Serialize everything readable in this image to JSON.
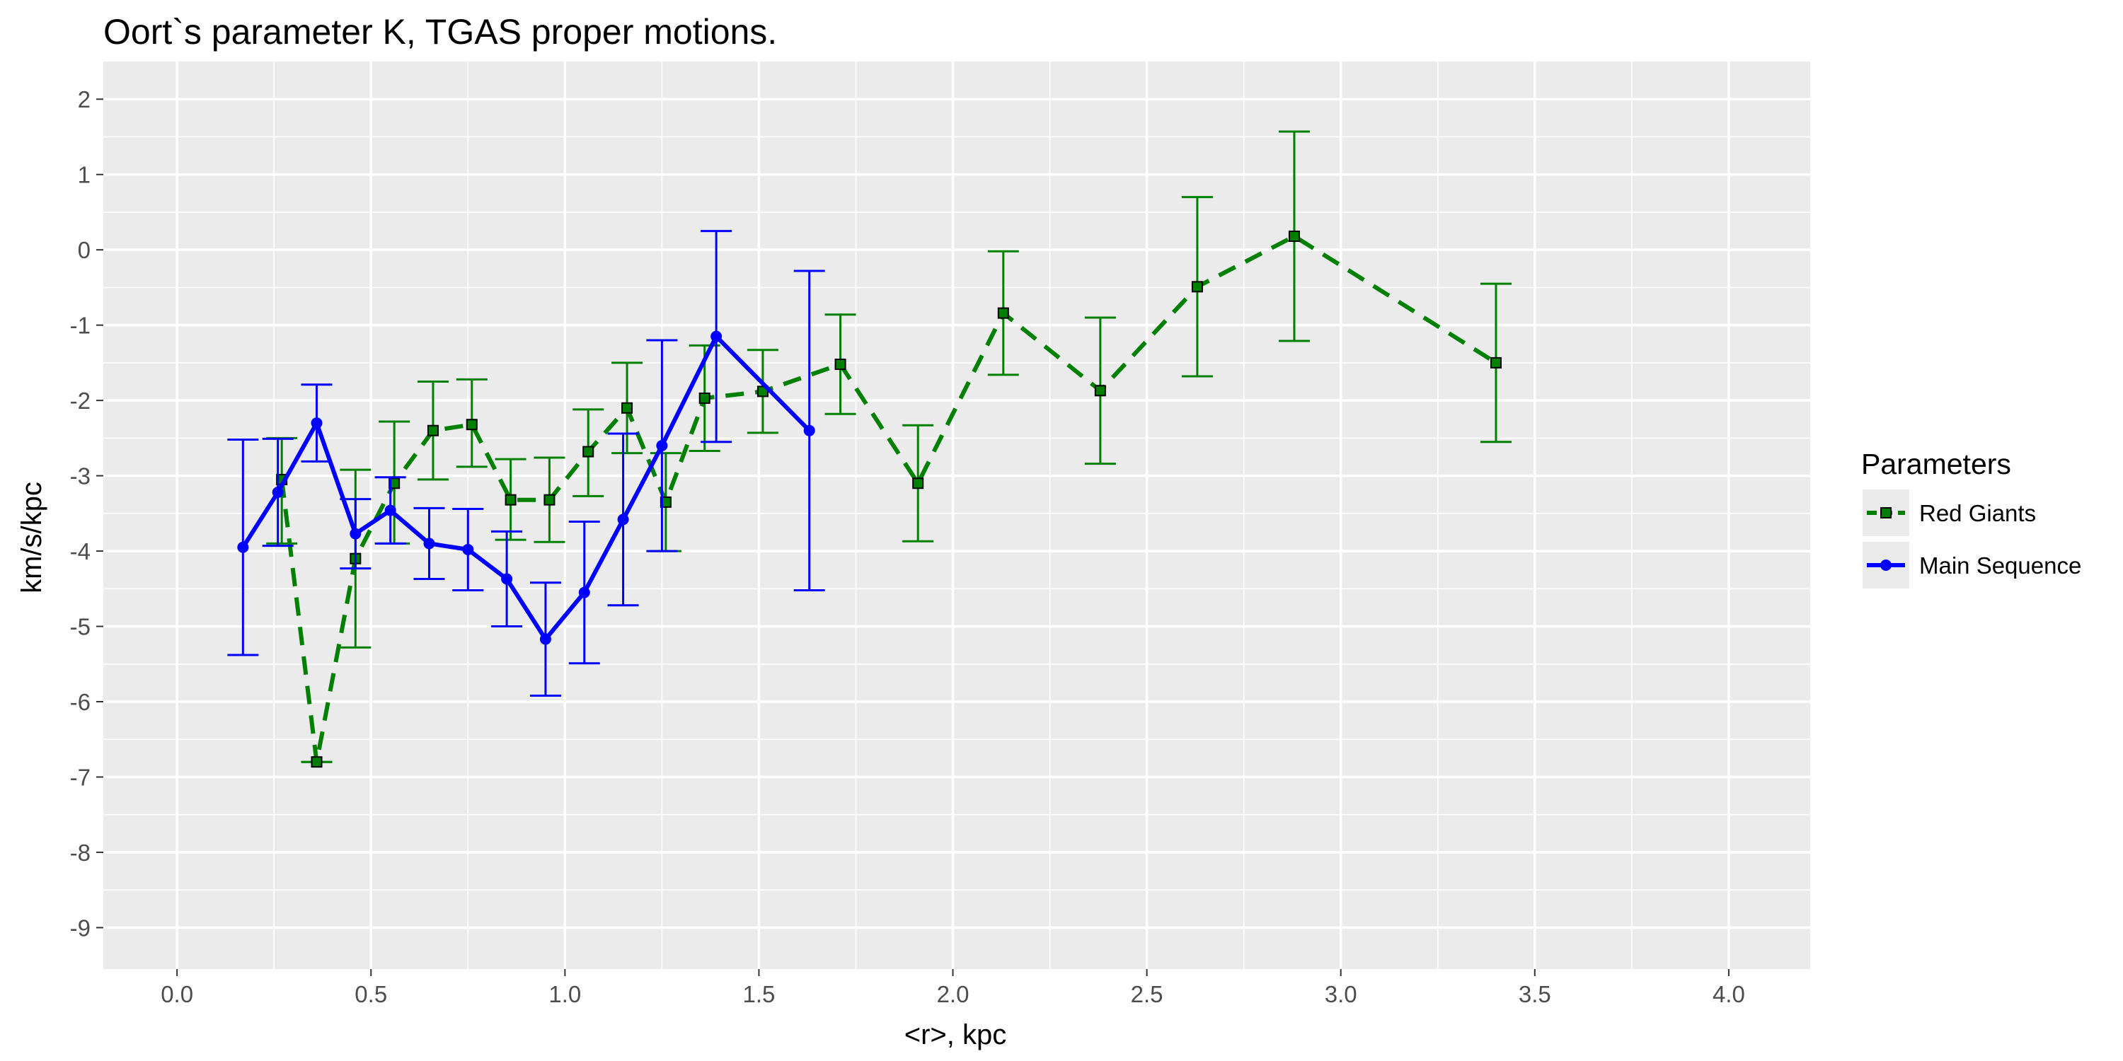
{
  "chart_data": {
    "type": "line",
    "title": "Oort`s parameter K,  TGAS  proper motions.",
    "xlabel": "<r>, kpc",
    "ylabel": "km/s/kpc",
    "xlim": [
      -0.19,
      4.21
    ],
    "ylim": [
      -9.55,
      2.5
    ],
    "x_ticks": [
      0.0,
      0.5,
      1.0,
      1.5,
      2.0,
      2.5,
      3.0,
      3.5,
      4.0
    ],
    "x_tick_labels": [
      "0.0",
      "0.5",
      "1.0",
      "1.5",
      "2.0",
      "2.5",
      "3.0",
      "3.5",
      "4.0"
    ],
    "y_ticks": [
      2,
      1,
      0,
      -1,
      -2,
      -3,
      -4,
      -5,
      -6,
      -7,
      -8,
      -9
    ],
    "y_tick_labels": [
      "2",
      "1",
      "0",
      "-1",
      "-2",
      "-3",
      "-4",
      "-5",
      "-6",
      "-7",
      "-8",
      "-9"
    ],
    "grid": true,
    "panel_background": "#ebebeb",
    "legend": {
      "title": "Parameters",
      "position": "right"
    },
    "series": [
      {
        "name": "Red Giants",
        "color": "#008000",
        "line_style": "dashed",
        "marker": "square",
        "points": [
          {
            "x": 0.27,
            "y": -3.05,
            "lo": -3.9,
            "hi": -2.5
          },
          {
            "x": 0.36,
            "y": -6.8,
            "lo": -6.8,
            "hi": -6.8
          },
          {
            "x": 0.46,
            "y": -4.1,
            "lo": -5.28,
            "hi": -2.92
          },
          {
            "x": 0.56,
            "y": -3.1,
            "lo": -3.9,
            "hi": -2.28
          },
          {
            "x": 0.66,
            "y": -2.4,
            "lo": -3.05,
            "hi": -1.75
          },
          {
            "x": 0.76,
            "y": -2.32,
            "lo": -2.88,
            "hi": -1.72
          },
          {
            "x": 0.86,
            "y": -3.32,
            "lo": -3.85,
            "hi": -2.78
          },
          {
            "x": 0.96,
            "y": -3.32,
            "lo": -3.88,
            "hi": -2.76
          },
          {
            "x": 1.06,
            "y": -2.68,
            "lo": -3.27,
            "hi": -2.12
          },
          {
            "x": 1.16,
            "y": -2.1,
            "lo": -2.7,
            "hi": -1.5
          },
          {
            "x": 1.26,
            "y": -3.35,
            "lo": -4.0,
            "hi": -2.7
          },
          {
            "x": 1.36,
            "y": -1.97,
            "lo": -2.67,
            "hi": -1.27
          },
          {
            "x": 1.51,
            "y": -1.88,
            "lo": -2.43,
            "hi": -1.33
          },
          {
            "x": 1.71,
            "y": -1.52,
            "lo": -2.18,
            "hi": -0.86
          },
          {
            "x": 1.91,
            "y": -3.1,
            "lo": -3.87,
            "hi": -2.33
          },
          {
            "x": 2.13,
            "y": -0.84,
            "lo": -1.66,
            "hi": -0.02
          },
          {
            "x": 2.38,
            "y": -1.87,
            "lo": -2.84,
            "hi": -0.9
          },
          {
            "x": 2.63,
            "y": -0.49,
            "lo": -1.68,
            "hi": 0.7
          },
          {
            "x": 2.88,
            "y": 0.18,
            "lo": -1.21,
            "hi": 1.57
          },
          {
            "x": 3.4,
            "y": -1.5,
            "lo": -2.55,
            "hi": -0.45
          }
        ]
      },
      {
        "name": "Main Sequence",
        "color": "#0000ff",
        "line_style": "solid",
        "marker": "circle",
        "points": [
          {
            "x": 0.17,
            "y": -3.95,
            "lo": -5.38,
            "hi": -2.52
          },
          {
            "x": 0.26,
            "y": -3.22,
            "lo": -3.93,
            "hi": -2.51
          },
          {
            "x": 0.36,
            "y": -2.3,
            "lo": -2.81,
            "hi": -1.79
          },
          {
            "x": 0.46,
            "y": -3.77,
            "lo": -4.23,
            "hi": -3.31
          },
          {
            "x": 0.55,
            "y": -3.46,
            "lo": -3.9,
            "hi": -3.02
          },
          {
            "x": 0.65,
            "y": -3.9,
            "lo": -4.37,
            "hi": -3.43
          },
          {
            "x": 0.75,
            "y": -3.98,
            "lo": -4.52,
            "hi": -3.44
          },
          {
            "x": 0.85,
            "y": -4.37,
            "lo": -5.0,
            "hi": -3.74
          },
          {
            "x": 0.95,
            "y": -5.17,
            "lo": -5.92,
            "hi": -4.42
          },
          {
            "x": 1.05,
            "y": -4.55,
            "lo": -5.49,
            "hi": -3.61
          },
          {
            "x": 1.15,
            "y": -3.58,
            "lo": -4.72,
            "hi": -2.44
          },
          {
            "x": 1.25,
            "y": -2.6,
            "lo": -4.0,
            "hi": -1.2
          },
          {
            "x": 1.39,
            "y": -1.15,
            "lo": -2.55,
            "hi": 0.25
          },
          {
            "x": 1.63,
            "y": -2.4,
            "lo": -4.52,
            "hi": -0.28
          }
        ]
      }
    ]
  }
}
